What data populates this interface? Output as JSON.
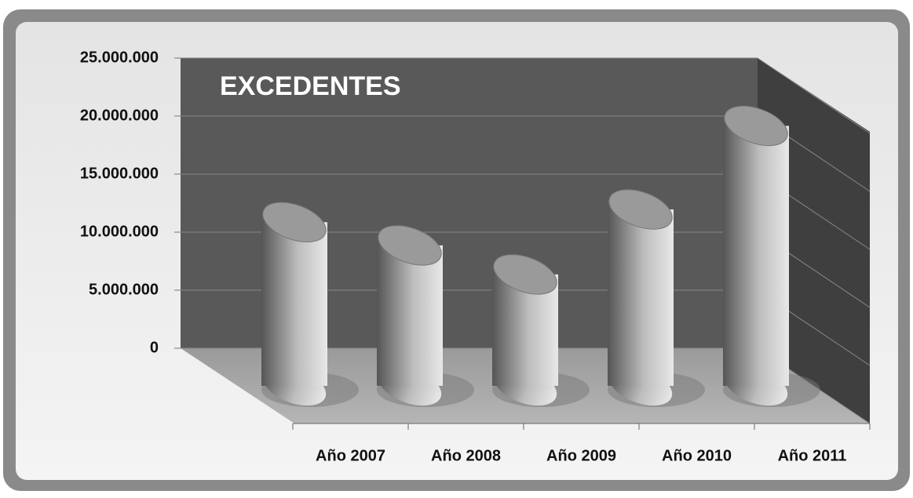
{
  "chart_data": {
    "type": "bar",
    "title": "EXCEDENTES",
    "categories": [
      "Año 2007",
      "Año 2008",
      "Año 2009",
      "Año 2010",
      "Año 2011"
    ],
    "values": [
      14100000,
      12100000,
      9600000,
      15200000,
      22400000
    ],
    "color": "#9a9a9a",
    "ylim": [
      0,
      25000000
    ],
    "yticks": [
      0,
      {
        "value": 5000000,
        "label": "5.000.000"
      },
      {
        "value": 10000000,
        "label": "10.000.000"
      },
      {
        "value": 15000000,
        "label": "15.000.000"
      },
      {
        "value": 20000000,
        "label": "20.000.000"
      },
      {
        "value": 25000000,
        "label": "25.000.000"
      }
    ],
    "grid": true
  }
}
